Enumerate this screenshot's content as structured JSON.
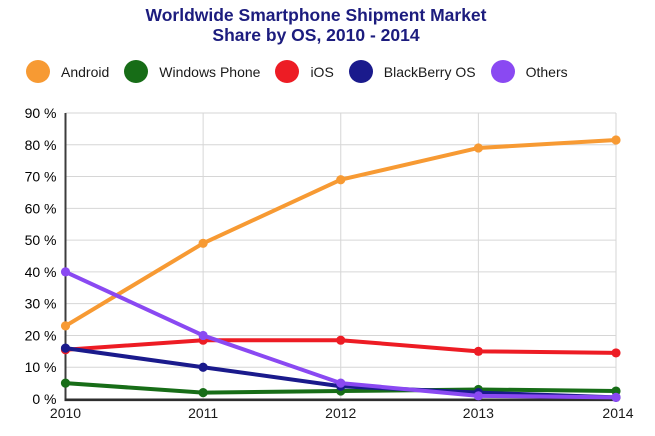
{
  "title": {
    "line1": "Worldwide Smartphone Shipment Market",
    "line2": "Share by OS, 2010 - 2014"
  },
  "chart_data": {
    "type": "line",
    "title": "Worldwide Smartphone Shipment Market Share by OS, 2010 - 2014",
    "x": [
      "2010",
      "2011",
      "2012",
      "2013",
      "2014"
    ],
    "series": [
      {
        "name": "Android",
        "color": "#F79A33",
        "values": [
          23,
          49,
          69,
          79,
          81.5
        ]
      },
      {
        "name": "Windows Phone",
        "color": "#176D17",
        "values": [
          5,
          2,
          2.5,
          3,
          2.5
        ]
      },
      {
        "name": "iOS",
        "color": "#ED1C24",
        "values": [
          15.5,
          18.5,
          18.5,
          15,
          14.5
        ]
      },
      {
        "name": "BlackBerry OS",
        "color": "#1A1A8C",
        "values": [
          16,
          10,
          4,
          2,
          0.5
        ]
      },
      {
        "name": "Others",
        "color": "#8A49F2",
        "values": [
          40,
          20,
          5,
          1,
          0.5
        ]
      }
    ],
    "xlabel": "",
    "ylabel": "",
    "ylim": [
      0,
      90
    ],
    "y_ticks": [
      0,
      10,
      20,
      30,
      40,
      50,
      60,
      70,
      80,
      90
    ],
    "y_tick_suffix": " %",
    "grid": true,
    "legend_position": "top"
  },
  "colors": {
    "title_text": "#1C1C7E",
    "axis_line": "#333333",
    "grid_line": "#D6D6D6",
    "tick_label": "#000000"
  }
}
